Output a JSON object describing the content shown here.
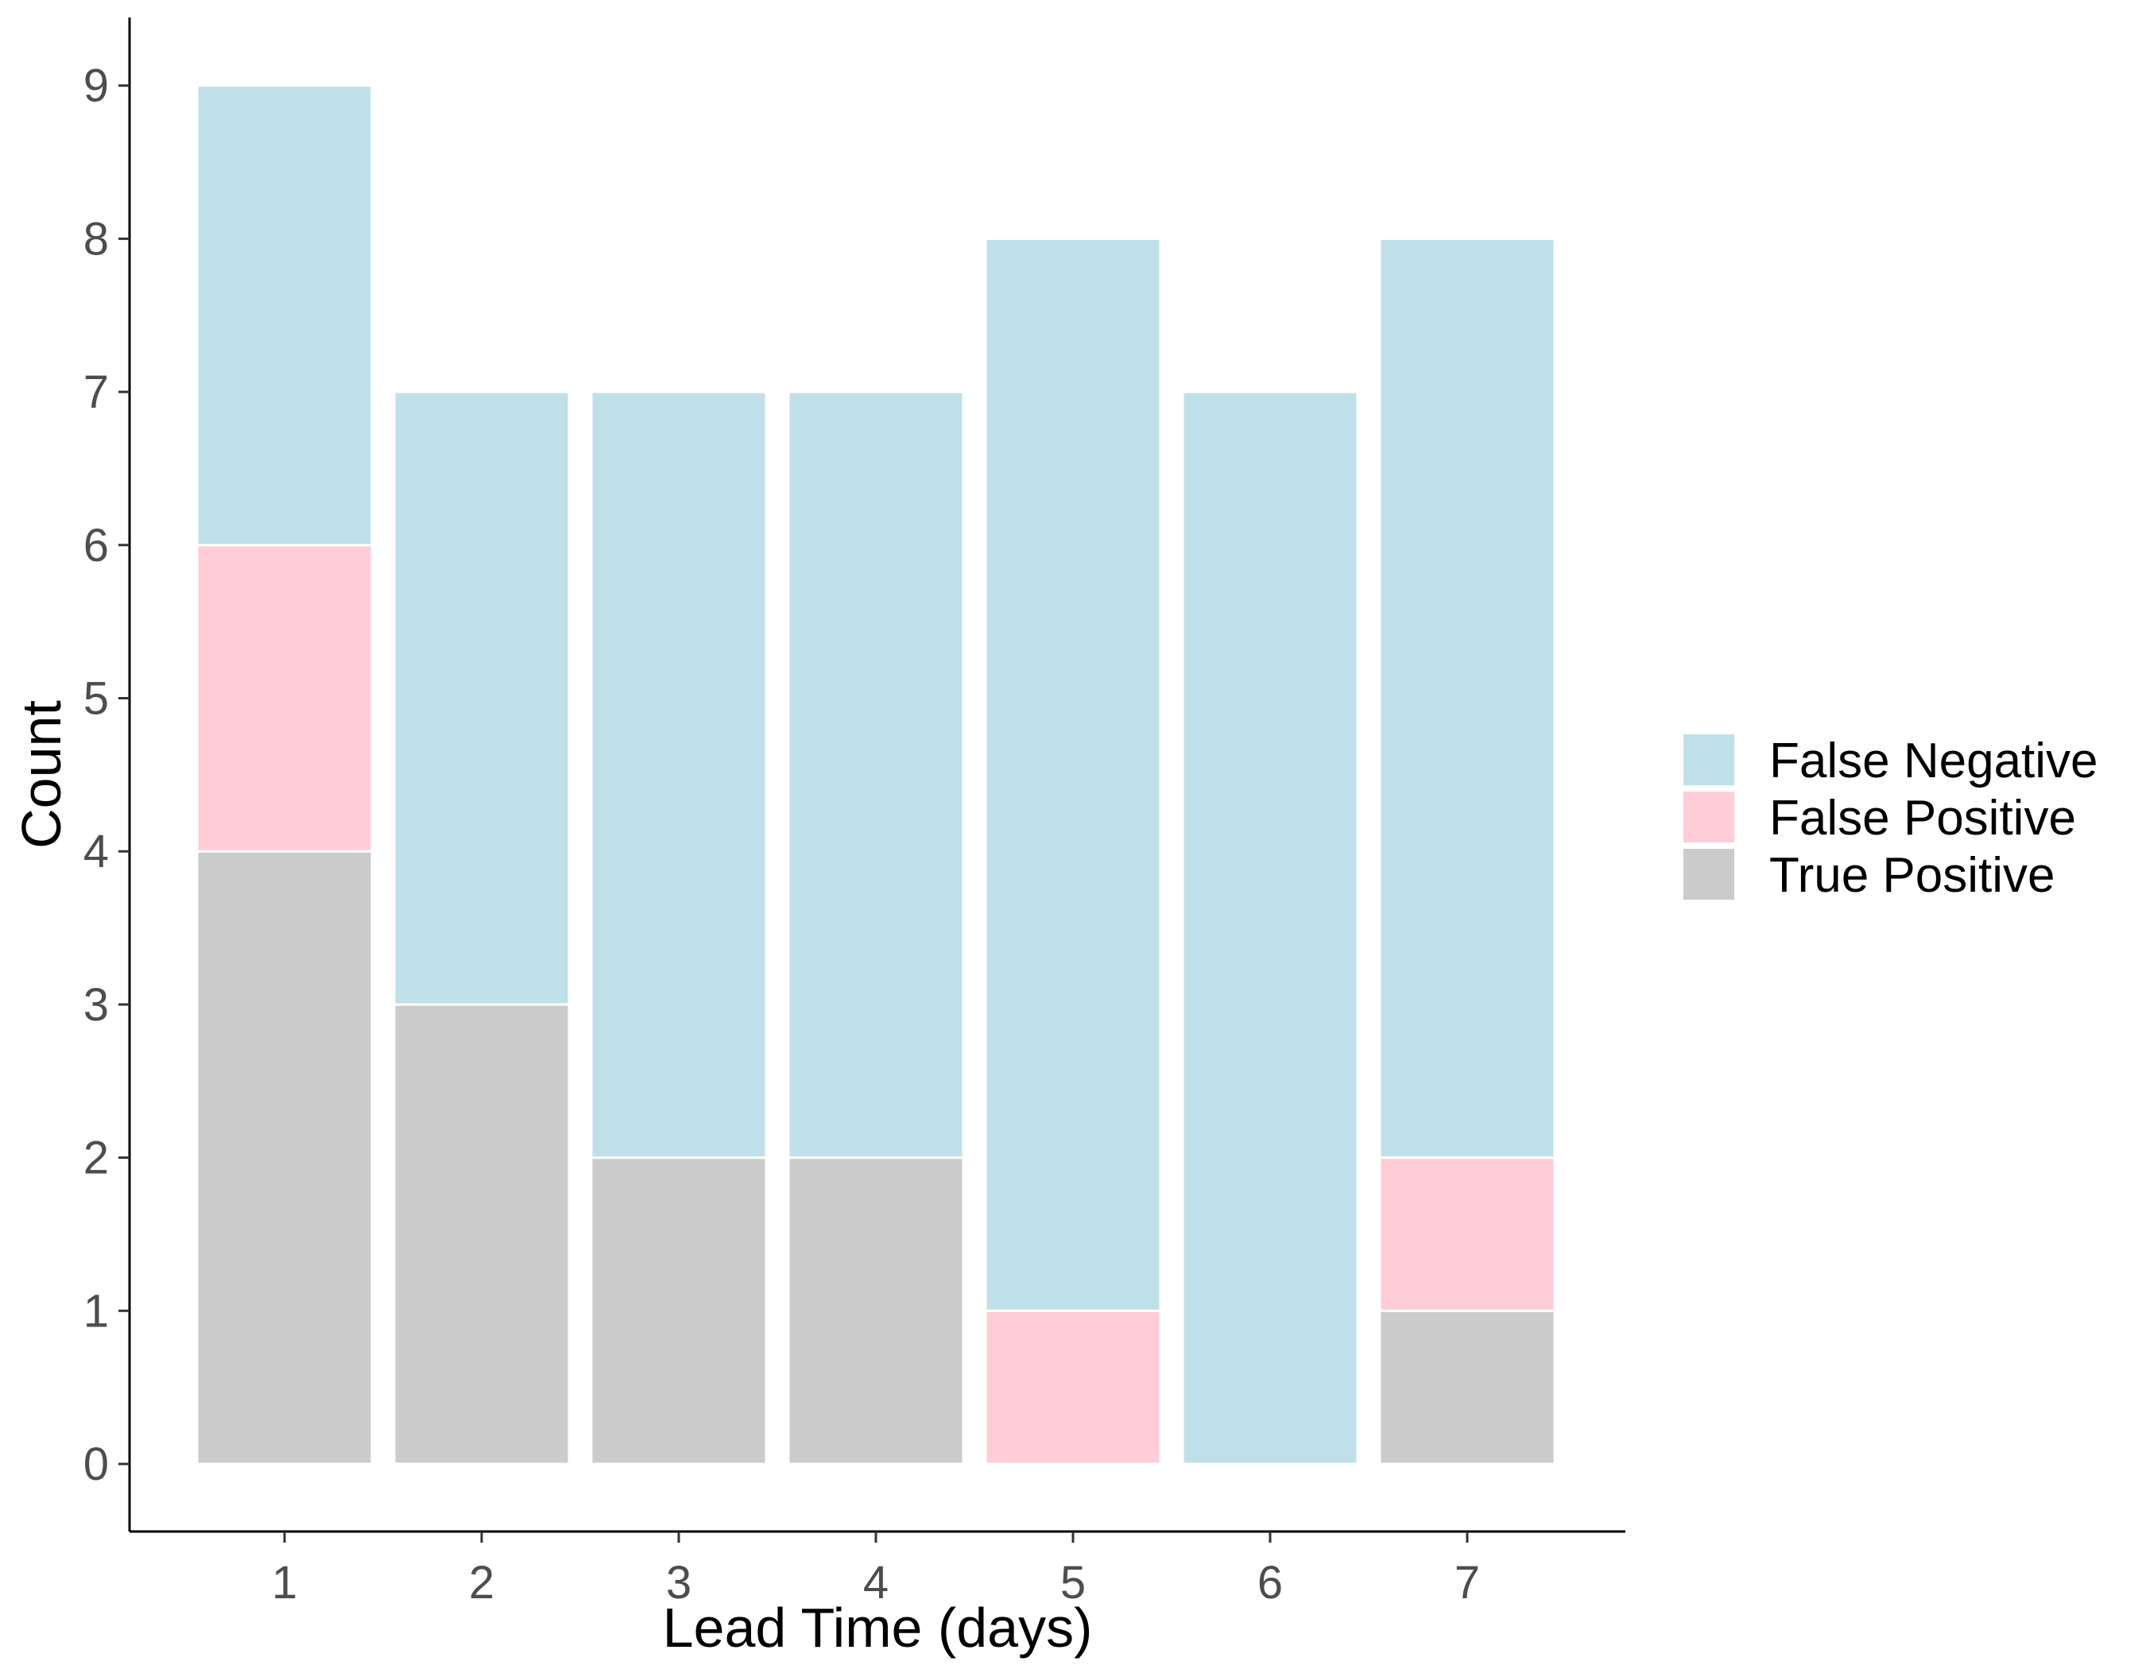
{
  "chart_data": {
    "type": "bar",
    "stacked": true,
    "categories": [
      "1",
      "2",
      "3",
      "4",
      "5",
      "6",
      "7"
    ],
    "series": [
      {
        "name": "True Positive",
        "color": "#cbcbcb",
        "values": [
          4,
          3,
          2,
          2,
          0,
          0,
          1
        ]
      },
      {
        "name": "False Positive",
        "color": "#ffcdd7",
        "values": [
          2,
          0,
          0,
          0,
          1,
          0,
          1
        ]
      },
      {
        "name": "False Negative",
        "color": "#c0e0e9",
        "values": [
          3,
          4,
          5,
          5,
          7,
          7,
          6
        ]
      }
    ],
    "legend_order": [
      "False Negative",
      "False Positive",
      "True Positive"
    ],
    "xlabel": "Lead Time (days)",
    "ylabel": "Count",
    "yticks": [
      0,
      1,
      2,
      3,
      4,
      5,
      6,
      7,
      8,
      9
    ],
    "ylim": [
      -0.43,
      9.43
    ],
    "grid": false,
    "legend_position": "right"
  }
}
